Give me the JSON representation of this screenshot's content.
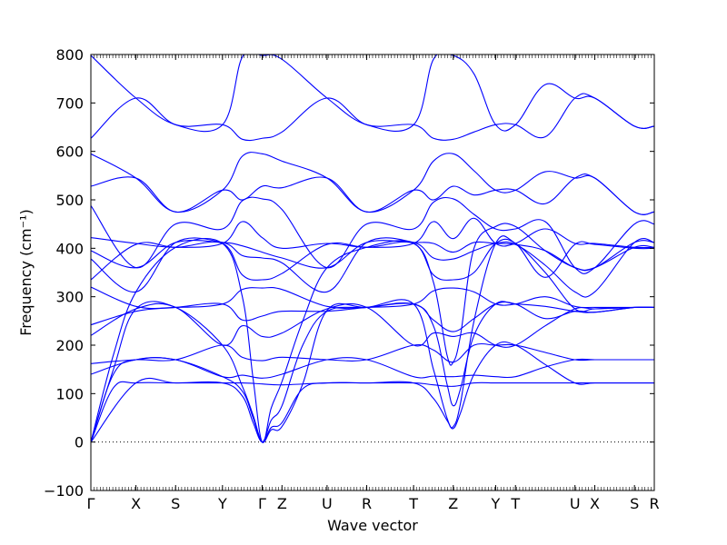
{
  "chart_data": {
    "type": "line",
    "title": "",
    "xlabel": "Wave vector",
    "ylabel": "Frequency (cm⁻¹)",
    "ylim": [
      -100,
      800
    ],
    "yticks": [
      -100,
      0,
      100,
      200,
      300,
      400,
      500,
      600,
      700,
      800
    ],
    "zero_line": 0,
    "grid": false,
    "band_color": "#0000ff",
    "xticks": [
      {
        "label": "Γ",
        "x": 0.0
      },
      {
        "label": "X",
        "x": 0.5
      },
      {
        "label": "S",
        "x": 0.94
      },
      {
        "label": "Y",
        "x": 1.46
      },
      {
        "label": "Γ",
        "x": 1.9
      },
      {
        "label": "Z",
        "x": 2.12
      },
      {
        "label": "U",
        "x": 2.62
      },
      {
        "label": "R",
        "x": 3.06
      },
      {
        "label": "T",
        "x": 3.58
      },
      {
        "label": "Z",
        "x": 4.02
      },
      {
        "label": "Y",
        "x": 4.49
      },
      {
        "label": "T",
        "x": 4.71
      },
      {
        "label": "U",
        "x": 5.37
      },
      {
        "label": "X",
        "x": 5.59
      },
      {
        "label": "S",
        "x": 6.03
      },
      {
        "label": "R",
        "x": 6.25
      }
    ],
    "series": [
      {
        "x": [
          0,
          0.5,
          0.94,
          1.46,
          1.68,
          1.9,
          2.12,
          2.62,
          3.06,
          3.58,
          3.8,
          4.02,
          4.25,
          4.49,
          4.71,
          5.04,
          5.37,
          5.59,
          6.03,
          6.25
        ],
        "values": [
          798,
          710,
          655,
          655,
          795,
          798,
          790,
          710,
          655,
          655,
          790,
          798,
          760,
          655,
          655,
          738,
          710,
          710,
          652,
          652
        ]
      },
      {
        "x": [
          0,
          0.5,
          0.94,
          1.46,
          1.68,
          1.9,
          2.12,
          2.62,
          3.06,
          3.58,
          3.8,
          4.02,
          4.25,
          4.49,
          4.71,
          5.04,
          5.37,
          5.59,
          6.03,
          6.25
        ],
        "values": [
          627,
          710,
          655,
          655,
          625,
          627,
          640,
          710,
          655,
          655,
          627,
          625,
          640,
          655,
          655,
          630,
          710,
          710,
          652,
          652
        ]
      },
      {
        "x": [
          0,
          0.5,
          0.94,
          1.46,
          1.68,
          1.9,
          2.12,
          2.62,
          3.06,
          3.58,
          3.8,
          4.02,
          4.25,
          4.49,
          4.71,
          5.04,
          5.37,
          5.59,
          6.03,
          6.25
        ],
        "values": [
          595,
          545,
          475,
          520,
          590,
          595,
          580,
          545,
          475,
          520,
          580,
          595,
          560,
          520,
          520,
          558,
          545,
          545,
          475,
          475
        ]
      },
      {
        "x": [
          0,
          0.5,
          0.94,
          1.46,
          1.68,
          1.9,
          2.12,
          2.62,
          3.06,
          3.58,
          3.8,
          4.02,
          4.25,
          4.49,
          4.71,
          5.04,
          5.37,
          5.59,
          6.03,
          6.25
        ],
        "values": [
          528,
          545,
          475,
          520,
          500,
          528,
          525,
          545,
          475,
          520,
          500,
          528,
          510,
          520,
          520,
          492,
          545,
          545,
          475,
          475
        ]
      },
      {
        "x": [
          0,
          0.5,
          0.94,
          1.46,
          1.68,
          1.9,
          2.12,
          2.62,
          3.06,
          3.58,
          3.8,
          4.02,
          4.25,
          4.49,
          4.71,
          5.04,
          5.37,
          5.59,
          6.03,
          6.25
        ],
        "values": [
          488,
          360,
          450,
          440,
          498,
          502,
          480,
          360,
          450,
          440,
          495,
          502,
          470,
          440,
          440,
          455,
          360,
          360,
          450,
          450
        ]
      },
      {
        "x": [
          0,
          0.5,
          0.94,
          1.46,
          1.68,
          1.9,
          2.12,
          2.62,
          3.06,
          3.58,
          3.8,
          4.02,
          4.25,
          4.49,
          4.71,
          5.04,
          5.37,
          5.59,
          6.03,
          6.25
        ],
        "values": [
          422,
          410,
          402,
          410,
          455,
          422,
          400,
          410,
          402,
          410,
          455,
          420,
          462,
          410,
          410,
          440,
          410,
          410,
          402,
          402
        ]
      },
      {
        "x": [
          0,
          0.5,
          0.94,
          1.46,
          1.68,
          1.9,
          2.12,
          2.62,
          3.06,
          3.58,
          3.8,
          4.02,
          4.25,
          4.49,
          4.71,
          5.04,
          5.37,
          5.59,
          6.03,
          6.25
        ],
        "values": [
          395,
          360,
          412,
          412,
          405,
          392,
          380,
          360,
          412,
          412,
          410,
          392,
          412,
          410,
          408,
          395,
          360,
          360,
          412,
          412
        ]
      },
      {
        "x": [
          0,
          0.5,
          0.94,
          1.46,
          1.68,
          1.9,
          2.12,
          2.62,
          3.06,
          3.58,
          3.8,
          4.02,
          4.25,
          4.49,
          4.71,
          5.04,
          5.37,
          5.59,
          6.03,
          6.25
        ],
        "values": [
          378,
          310,
          412,
          412,
          385,
          380,
          370,
          310,
          412,
          412,
          380,
          378,
          395,
          410,
          408,
          365,
          310,
          310,
          412,
          412
        ]
      },
      {
        "x": [
          0,
          0.5,
          0.94,
          1.46,
          1.68,
          1.9,
          2.12,
          2.62,
          3.06,
          3.58,
          3.8,
          4.02,
          4.25,
          4.49,
          4.71,
          5.04,
          5.37,
          5.59,
          6.03,
          6.25
        ],
        "values": [
          335,
          408,
          402,
          410,
          345,
          335,
          348,
          408,
          402,
          410,
          345,
          335,
          350,
          410,
          410,
          340,
          408,
          408,
          400,
          400
        ]
      },
      {
        "x": [
          0,
          0.5,
          0.94,
          1.46,
          1.68,
          1.9,
          2.12,
          2.62,
          3.06,
          3.58,
          3.8,
          4.02,
          4.25,
          4.49,
          4.71,
          5.04,
          5.37,
          5.59,
          6.03,
          6.25
        ],
        "values": [
          320,
          280,
          278,
          285,
          315,
          318,
          315,
          280,
          278,
          285,
          312,
          318,
          310,
          285,
          285,
          300,
          280,
          278,
          278,
          278
        ]
      },
      {
        "x": [
          0,
          0.5,
          0.94,
          1.46,
          1.68,
          1.9,
          2.12,
          2.62,
          3.06,
          3.58,
          3.8,
          4.02,
          4.25,
          4.49,
          4.71,
          5.04,
          5.37,
          5.59,
          6.03,
          6.25
        ],
        "values": [
          242,
          270,
          278,
          285,
          252,
          260,
          270,
          270,
          278,
          285,
          252,
          228,
          255,
          285,
          285,
          255,
          270,
          268,
          278,
          278
        ]
      },
      {
        "x": [
          0,
          0.5,
          0.94,
          1.46,
          1.68,
          1.9,
          2.12,
          2.62,
          3.06,
          3.58,
          3.8,
          4.02,
          4.25,
          4.49,
          4.71,
          5.04,
          5.37,
          5.59,
          6.03,
          6.25
        ],
        "values": [
          220,
          275,
          278,
          200,
          240,
          218,
          225,
          275,
          278,
          200,
          225,
          218,
          225,
          200,
          200,
          240,
          275,
          275,
          278,
          278
        ]
      },
      {
        "x": [
          0,
          0.5,
          0.94,
          1.46,
          1.68,
          1.9,
          2.12,
          2.62,
          3.06,
          3.58,
          3.8,
          4.02,
          4.25,
          4.49,
          4.71,
          5.04,
          5.37,
          5.59,
          6.03,
          6.25
        ],
        "values": [
          162,
          170,
          170,
          200,
          175,
          168,
          175,
          170,
          170,
          200,
          190,
          165,
          200,
          200,
          200,
          185,
          170,
          170,
          170,
          170
        ]
      },
      {
        "x": [
          0,
          0.5,
          0.94,
          1.46,
          1.68,
          1.9,
          2.12,
          2.62,
          3.06,
          3.58,
          3.8,
          4.02,
          4.25,
          4.49,
          4.71,
          5.04,
          5.37,
          5.59,
          6.03,
          6.25
        ],
        "values": [
          140,
          170,
          170,
          135,
          138,
          132,
          140,
          170,
          170,
          135,
          136,
          135,
          138,
          135,
          135,
          155,
          170,
          170,
          170,
          170
        ]
      },
      {
        "x": [
          0,
          0.5,
          0.94,
          1.46,
          1.68,
          1.9,
          2.12,
          2.62,
          3.06,
          3.58,
          3.8,
          4.02,
          4.25,
          4.49,
          4.71,
          5.04,
          5.37,
          5.59,
          6.03,
          6.25
        ],
        "values": [
          0,
          122,
          122,
          122,
          122,
          120,
          118,
          122,
          122,
          122,
          118,
          115,
          122,
          122,
          122,
          122,
          122,
          122,
          122,
          122
        ]
      },
      {
        "x": [
          0,
          0.25,
          0.5,
          0.94,
          1.46,
          1.68,
          1.8,
          1.9,
          2.0,
          2.12,
          2.35,
          2.62,
          3.06,
          3.58,
          3.8,
          3.95,
          4.02,
          4.1,
          4.25,
          4.49,
          4.71,
          5.04,
          5.37,
          5.59,
          6.03,
          6.25
        ],
        "values": [
          0,
          140,
          170,
          170,
          135,
          105,
          50,
          0,
          45,
          75,
          200,
          270,
          278,
          285,
          240,
          120,
          75,
          110,
          220,
          285,
          285,
          280,
          270,
          268,
          278,
          278
        ]
      },
      {
        "x": [
          0,
          0.25,
          0.5,
          0.94,
          1.46,
          1.68,
          1.8,
          1.9,
          2.0,
          2.12,
          2.35,
          2.62,
          3.06,
          3.58,
          3.8,
          3.95,
          4.02,
          4.1,
          4.25,
          4.49,
          4.71,
          5.04,
          5.37,
          5.59,
          6.03,
          6.25
        ],
        "values": [
          0,
          112,
          122,
          122,
          122,
          95,
          40,
          0,
          30,
          40,
          110,
          122,
          122,
          122,
          90,
          45,
          28,
          60,
          140,
          200,
          200,
          160,
          122,
          122,
          122,
          122
        ]
      },
      {
        "x": [
          0,
          0.25,
          0.5,
          0.94,
          1.46,
          1.68,
          1.8,
          1.9,
          2.0,
          2.12,
          2.35,
          2.62,
          3.06,
          3.58,
          3.8,
          3.95,
          4.02,
          4.1,
          4.25,
          4.49,
          4.71,
          5.04,
          5.37,
          5.59,
          6.03,
          6.25
        ],
        "values": [
          0,
          150,
          275,
          278,
          200,
          115,
          55,
          0,
          25,
          32,
          120,
          272,
          278,
          285,
          150,
          50,
          32,
          80,
          250,
          410,
          410,
          350,
          275,
          275,
          278,
          278
        ]
      },
      {
        "x": [
          0,
          0.25,
          0.5,
          0.94,
          1.46,
          1.68,
          1.8,
          1.9,
          2.0,
          2.12,
          2.35,
          2.62,
          3.06,
          3.58,
          3.8,
          3.95,
          4.02,
          4.1,
          4.25,
          4.49,
          4.71,
          5.04,
          5.37,
          5.59,
          6.03,
          6.25
        ],
        "values": [
          0,
          180,
          310,
          402,
          410,
          300,
          130,
          0,
          70,
          125,
          250,
          360,
          402,
          410,
          330,
          180,
          165,
          220,
          400,
          445,
          445,
          395,
          360,
          360,
          402,
          402
        ]
      }
    ]
  }
}
